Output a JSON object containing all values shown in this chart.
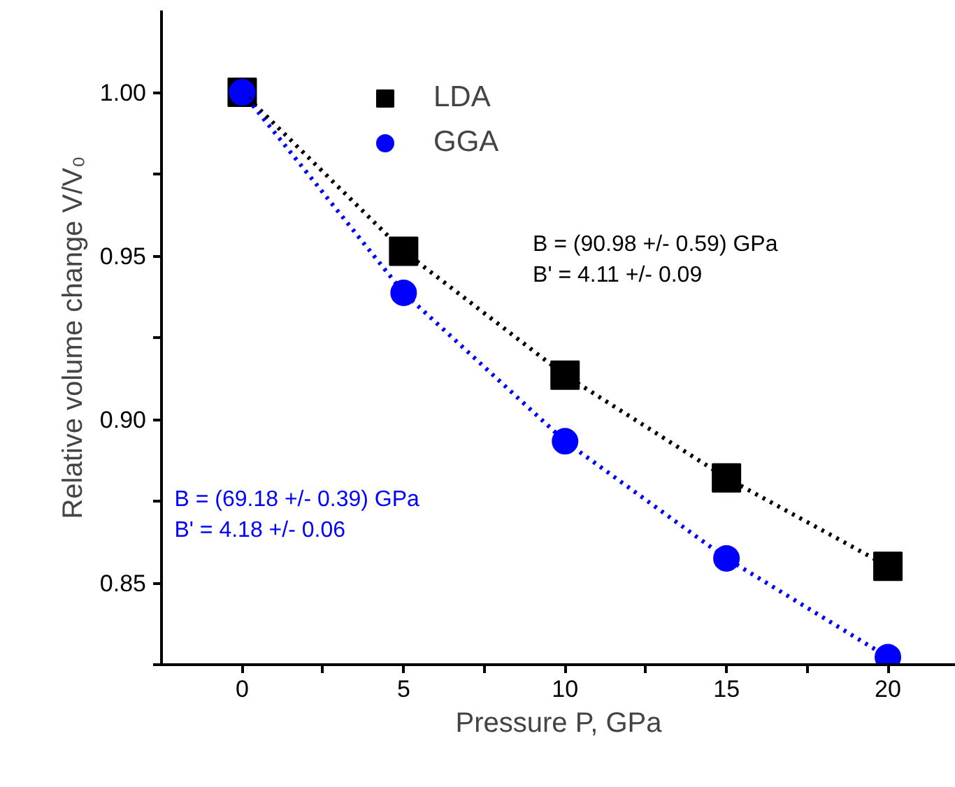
{
  "chart_data": {
    "type": "scatter",
    "xlabel": "Pressure P, GPa",
    "ylabel": "Relative volume change V/V₀",
    "x": [
      0,
      5,
      10,
      15,
      20
    ],
    "series": [
      {
        "name": "LDA",
        "color": "#000000",
        "marker": "square",
        "values": [
          1.0,
          0.9514,
          0.9135,
          0.8821,
          0.8551
        ]
      },
      {
        "name": "GGA",
        "color": "#0000ff",
        "marker": "circle",
        "values": [
          1.0,
          0.9387,
          0.8933,
          0.8575,
          0.8273
        ]
      },
      {
        "type": "line",
        "color": "#000000",
        "line_style": "dotted",
        "marker": "none",
        "values": [
          1.0,
          0.9514,
          0.9135,
          0.8821,
          0.8551
        ]
      },
      {
        "type": "line",
        "color": "#0000ff",
        "line_style": "dotted",
        "marker": "none",
        "values": [
          1.0,
          0.9387,
          0.8933,
          0.8575,
          0.8273
        ]
      }
    ],
    "xlim": [
      -2.5,
      22.1
    ],
    "ylim": [
      0.825,
      1.025
    ],
    "xticks": [
      0,
      {
        "value": 2.5,
        "label": null
      },
      5,
      {
        "value": 7.5,
        "label": null
      },
      10,
      {
        "value": 12.5,
        "label": null
      },
      15,
      {
        "value": 17.5,
        "label": null
      },
      20
    ],
    "yticks": [
      {
        "value": 0.825,
        "label": null
      },
      {
        "value": 0.85,
        "label": "0.85"
      },
      {
        "value": 0.875,
        "label": null
      },
      {
        "value": 0.9,
        "label": "0.90"
      },
      {
        "value": 0.925,
        "label": null
      },
      {
        "value": 0.95,
        "label": "0.95"
      },
      {
        "value": 0.975,
        "label": null
      },
      {
        "value": 1.0,
        "label": "1.00"
      }
    ],
    "annotations": [
      "B = (90.98 +/- 0.59) GPa\nB' = 4.11 +/- 0.09",
      "B = (69.18 +/- 0.39) GPa\nB' = 4.18 +/- 0.06"
    ],
    "grid": false,
    "legend": "top left"
  }
}
